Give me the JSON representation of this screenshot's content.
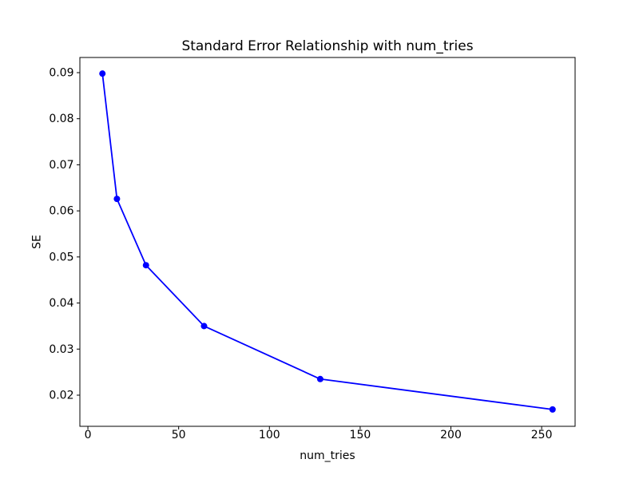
{
  "figure": {
    "background_color": "#ffffff",
    "axes_background_color": "#ffffff",
    "spine_color": "#000000",
    "tick_color": "#000000"
  },
  "chart_data": {
    "type": "line",
    "title": "Standard Error Relationship with num_tries",
    "xlabel": "num_tries",
    "ylabel": "SE",
    "grid": false,
    "legend_position": "none",
    "xlim": [
      -4.42,
      268.42
    ],
    "ylim": [
      0.01324,
      0.09329
    ],
    "xticks": {
      "values": [
        0,
        50,
        100,
        150,
        200,
        250
      ],
      "labels": [
        "0",
        "50",
        "100",
        "150",
        "200",
        "250"
      ]
    },
    "yticks": {
      "values": [
        0.02,
        0.03,
        0.04,
        0.05,
        0.06,
        0.07,
        0.08,
        0.09
      ],
      "labels": [
        "0.02",
        "0.03",
        "0.04",
        "0.05",
        "0.06",
        "0.07",
        "0.08",
        "0.09"
      ]
    },
    "series": [
      {
        "name": "SE",
        "x": [
          8,
          16,
          32,
          64,
          128,
          256
        ],
        "y": [
          0.0898,
          0.0626,
          0.0482,
          0.035,
          0.0235,
          0.0169
        ],
        "color": "#0000ff",
        "marker": "circle",
        "line_style": "solid"
      }
    ]
  }
}
